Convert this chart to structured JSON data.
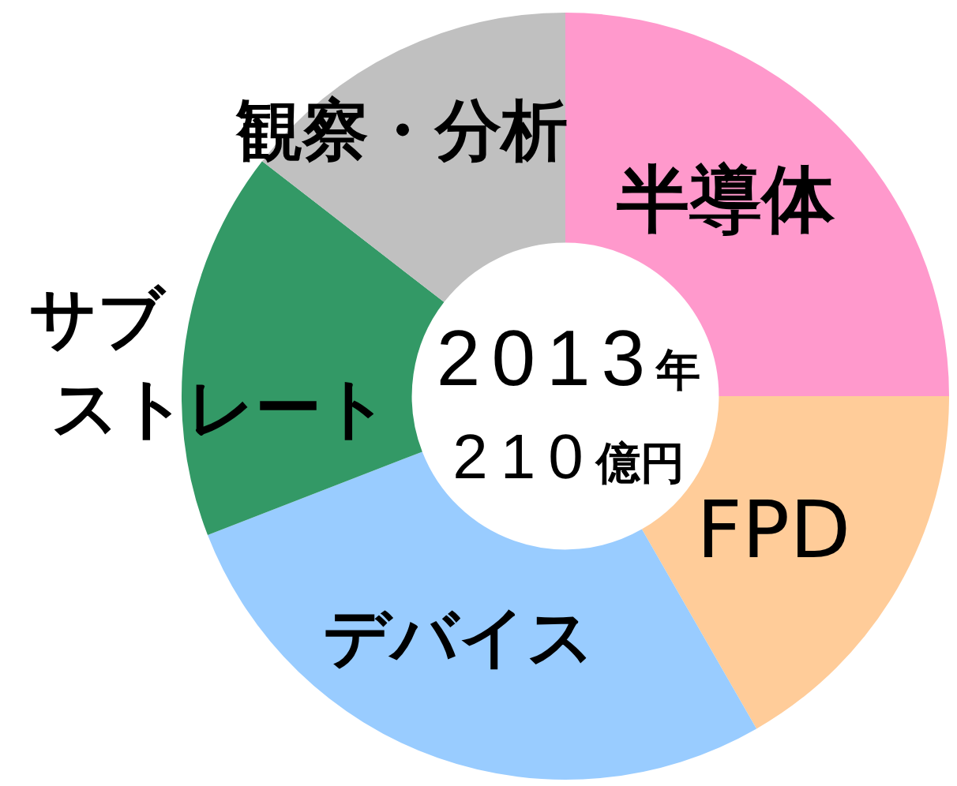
{
  "chart_data": {
    "type": "donut",
    "categories": [
      "半導体",
      "FPD",
      "デバイス",
      "サブストレート",
      "観察・分析"
    ],
    "values": [
      25.0,
      16.7,
      27.4,
      16.4,
      14.5
    ],
    "colors": [
      "#ff99cc",
      "#ffcc99",
      "#99ccff",
      "#339966",
      "#c0c0c0"
    ],
    "annotations": [
      "2013年",
      "210億円"
    ]
  }
}
